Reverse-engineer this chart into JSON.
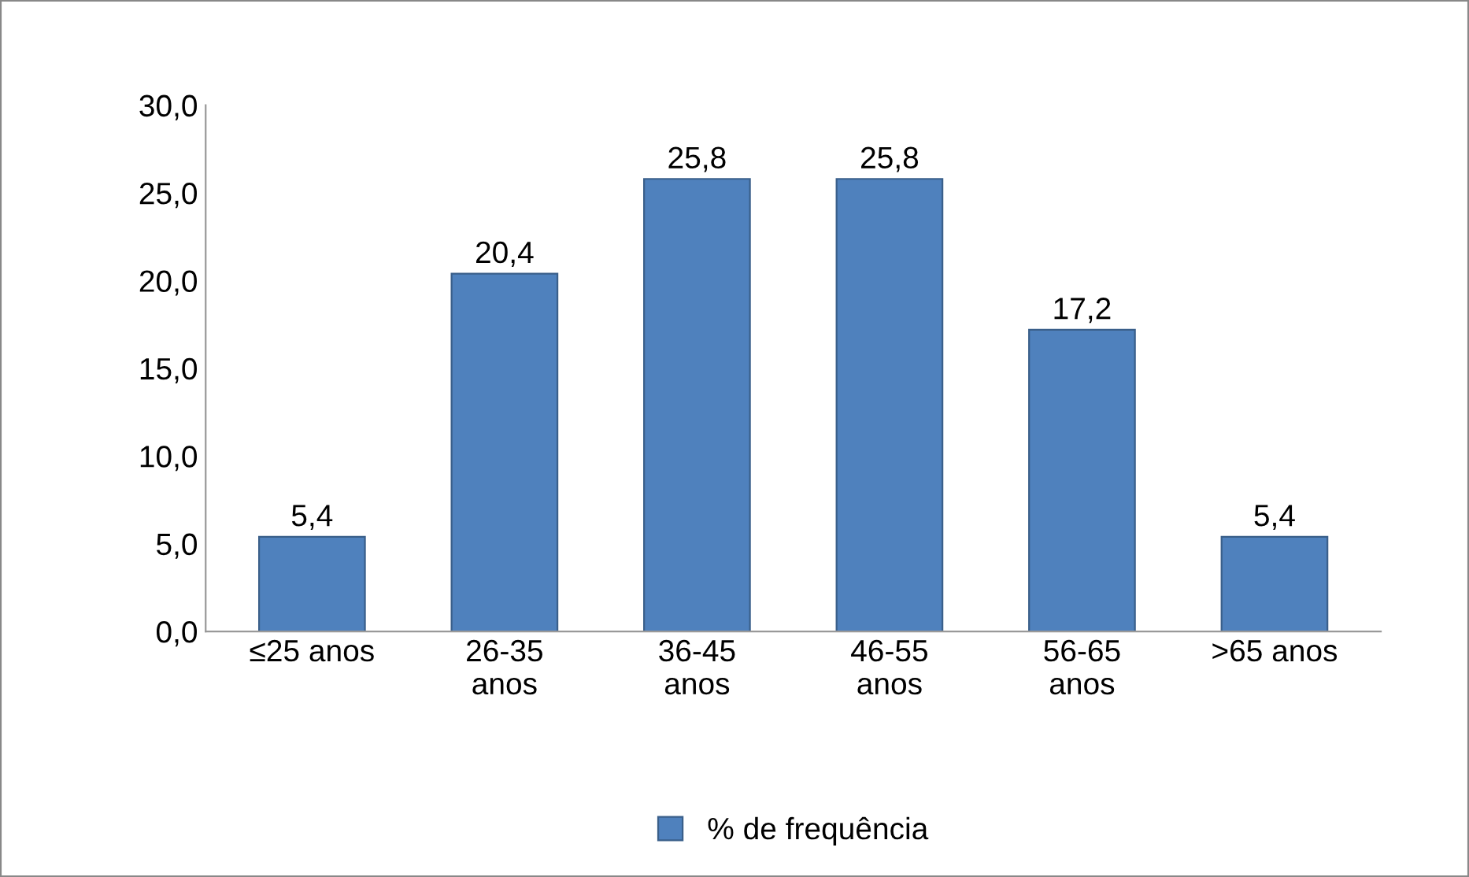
{
  "chart_data": {
    "type": "bar",
    "categories": [
      "≤25 anos",
      "26-35\nanos",
      "36-45\nanos",
      "46-55\nanos",
      "56-65\nanos",
      ">65 anos"
    ],
    "series": [
      {
        "name": "% de frequência",
        "color": "#4f81bd",
        "values": [
          5.4,
          20.4,
          25.8,
          25.8,
          17.2,
          5.4
        ],
        "value_labels": [
          "5,4",
          "20,4",
          "25,8",
          "25,8",
          "17,2",
          "5,4"
        ]
      }
    ],
    "ylim": [
      0,
      30
    ],
    "yticks": [
      {
        "value": 0,
        "label": "0,0"
      },
      {
        "value": 5,
        "label": "5,0"
      },
      {
        "value": 10,
        "label": "10,0"
      },
      {
        "value": 15,
        "label": "15,0"
      },
      {
        "value": 20,
        "label": "20,0"
      },
      {
        "value": 25,
        "label": "25,0"
      },
      {
        "value": 30,
        "label": "30,0"
      }
    ],
    "grid": false,
    "legend": "bottom"
  }
}
